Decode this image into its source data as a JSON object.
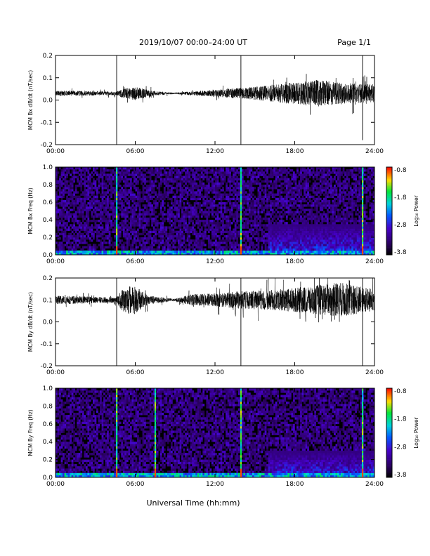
{
  "header": {
    "title": "2019/10/07  00:00–24:00 UT",
    "page": "Page 1/1"
  },
  "x_axis_label": "Universal Time (hh:mm)",
  "chart_data": [
    {
      "type": "line",
      "ylabel": "MCM Bx dB/dt (nT/sec)",
      "xlim": [
        0,
        24
      ],
      "ylim": [
        -0.2,
        0.2
      ],
      "x_ticks": [
        0,
        6,
        12,
        18,
        24
      ],
      "x_tick_labels": [
        "00:00",
        "06:00",
        "12:00",
        "18:00",
        "24:00"
      ],
      "y_ticks": [
        -0.2,
        -0.1,
        0.0,
        0.1,
        0.2
      ],
      "y_tick_labels": [
        "-0.2",
        "-0.1",
        "0.0",
        "0.1",
        "0.2"
      ],
      "baseline": 0.03,
      "amplitude_profile": [
        {
          "t": 0,
          "a": 0.012
        },
        {
          "t": 4.6,
          "a": 0.008
        },
        {
          "t": 5.0,
          "a": 0.02
        },
        {
          "t": 6.0,
          "a": 0.03
        },
        {
          "t": 7.5,
          "a": 0.01
        },
        {
          "t": 9.0,
          "a": 0.003
        },
        {
          "t": 10.0,
          "a": 0.008
        },
        {
          "t": 12.0,
          "a": 0.015
        },
        {
          "t": 14.0,
          "a": 0.025
        },
        {
          "t": 16.0,
          "a": 0.035
        },
        {
          "t": 18.0,
          "a": 0.05
        },
        {
          "t": 20.0,
          "a": 0.06
        },
        {
          "t": 22.0,
          "a": 0.045
        },
        {
          "t": 24.0,
          "a": 0.04
        }
      ],
      "spikes": [
        {
          "t": 4.6,
          "min": -0.2,
          "max": 0.2
        },
        {
          "t": 13.95,
          "min": -0.2,
          "max": 0.2
        },
        {
          "t": 23.1,
          "min": -0.18,
          "max": 0.2
        }
      ]
    },
    {
      "type": "heatmap",
      "ylabel": "MCM Bx Freq (Hz)",
      "colorbar_label": "Log₁₀ Power",
      "colorbar_ticks": [
        "-0.8",
        "-1.8",
        "-2.8",
        "-3.8"
      ],
      "clim": [
        -3.8,
        -0.8
      ],
      "xlim": [
        0,
        24
      ],
      "ylim": [
        0,
        1.0
      ],
      "x_ticks": [
        0,
        6,
        12,
        18,
        24
      ],
      "x_tick_labels": [
        "00:00",
        "06:00",
        "12:00",
        "18:00",
        "24:00"
      ],
      "y_ticks": [
        0,
        0.2,
        0.4,
        0.6,
        0.8,
        1.0
      ],
      "y_tick_labels": [
        "0.0",
        "0.2",
        "0.4",
        "0.6",
        "0.8",
        "1.0"
      ],
      "bright_columns": [
        4.6,
        13.95,
        23.1
      ],
      "activity_band": {
        "start": 16,
        "end": 24,
        "freq_max": 0.35
      }
    },
    {
      "type": "line",
      "ylabel": "MCM By dB/dt (nT/sec)",
      "xlim": [
        0,
        24
      ],
      "ylim": [
        -0.2,
        0.2
      ],
      "x_ticks": [
        0,
        6,
        12,
        18,
        24
      ],
      "x_tick_labels": [
        "00:00",
        "06:00",
        "12:00",
        "18:00",
        "24:00"
      ],
      "y_ticks": [
        -0.2,
        -0.1,
        0.0,
        0.1,
        0.2
      ],
      "y_tick_labels": [
        "-0.2",
        "-0.1",
        "0.0",
        "0.1",
        "0.2"
      ],
      "baseline": 0.1,
      "amplitude_profile": [
        {
          "t": 0,
          "a": 0.02
        },
        {
          "t": 4.6,
          "a": 0.012
        },
        {
          "t": 5.0,
          "a": 0.05
        },
        {
          "t": 5.8,
          "a": 0.07
        },
        {
          "t": 7.0,
          "a": 0.02
        },
        {
          "t": 9.0,
          "a": 0.005
        },
        {
          "t": 10.2,
          "a": 0.025
        },
        {
          "t": 12.0,
          "a": 0.03
        },
        {
          "t": 14.0,
          "a": 0.04
        },
        {
          "t": 16.0,
          "a": 0.045
        },
        {
          "t": 18.0,
          "a": 0.055
        },
        {
          "t": 20.0,
          "a": 0.07
        },
        {
          "t": 21.5,
          "a": 0.08
        },
        {
          "t": 24.0,
          "a": 0.05
        }
      ],
      "spikes": [
        {
          "t": 4.6,
          "min": -0.2,
          "max": 0.2
        },
        {
          "t": 13.95,
          "min": -0.2,
          "max": 0.2
        },
        {
          "t": 23.1,
          "min": -0.2,
          "max": 0.2
        }
      ]
    },
    {
      "type": "heatmap",
      "ylabel": "MCM By Freq (Hz)",
      "colorbar_label": "Log₁₀ Power",
      "colorbar_ticks": [
        "-0.8",
        "-1.8",
        "-2.8",
        "-3.8"
      ],
      "clim": [
        -3.8,
        -0.8
      ],
      "xlim": [
        0,
        24
      ],
      "ylim": [
        0,
        1.0
      ],
      "x_ticks": [
        0,
        6,
        12,
        18,
        24
      ],
      "x_tick_labels": [
        "00:00",
        "06:00",
        "12:00",
        "18:00",
        "24:00"
      ],
      "y_ticks": [
        0,
        0.2,
        0.4,
        0.6,
        0.8,
        1.0
      ],
      "y_tick_labels": [
        "0.0",
        "0.2",
        "0.4",
        "0.6",
        "0.8",
        "1.0"
      ],
      "bright_columns": [
        4.6,
        7.5,
        13.95,
        23.1
      ],
      "activity_band": {
        "start": 16,
        "end": 24,
        "freq_max": 0.3
      }
    }
  ]
}
